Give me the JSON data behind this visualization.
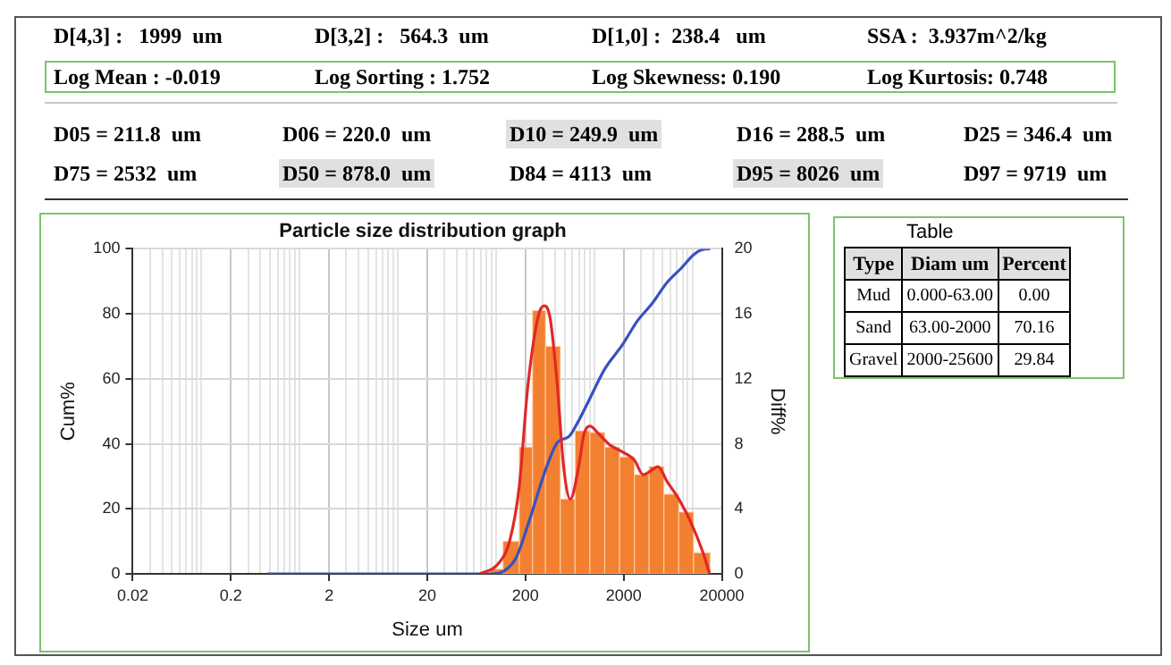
{
  "chart_data": [
    {
      "type": "other",
      "annotations": [
        "D[4,3] :   1999  um",
        "D[3,2] :   564.3  um",
        "D[1,0] :  238.4   um",
        "SSA :  3.937m^2/kg",
        "Log Mean : -0.019",
        "Log Sorting : 1.752",
        "Log Skewness: 0.190",
        "Log Kurtosis: 0.748",
        "D05 = 211.8  um",
        "D06 = 220.0  um",
        "D10 = 249.9  um",
        "D16 = 288.5  um",
        "D25 = 346.4  um",
        "D75 = 2532  um",
        "D50 = 878.0  um",
        "D84 = 4113  um",
        "D95 = 8026  um",
        "D97 = 9719  um"
      ]
    },
    {
      "type": "histogram",
      "title": "Particle size distribution graph",
      "xlabel": "Size um",
      "ylabel": "Cum%",
      "y2label": "Diff%",
      "log": "x",
      "grid": true,
      "marker": "none",
      "xlim": [
        0.02,
        20000
      ],
      "xticks": [
        0.02,
        {
          "value": 0.03,
          "label": null
        },
        {
          "value": 0.04,
          "label": null
        },
        {
          "value": 0.05,
          "label": null
        },
        {
          "value": 0.06,
          "label": null
        },
        {
          "value": 0.07,
          "label": null
        },
        {
          "value": 0.08,
          "label": null
        },
        {
          "value": 0.09,
          "label": null
        },
        {
          "value": 0.1,
          "label": null
        },
        0.2,
        {
          "value": 0.3,
          "label": null
        },
        {
          "value": 0.4,
          "label": null
        },
        {
          "value": 0.5,
          "label": null
        },
        {
          "value": 0.6,
          "label": null
        },
        {
          "value": 0.7,
          "label": null
        },
        {
          "value": 0.8,
          "label": null
        },
        {
          "value": 0.9,
          "label": null
        },
        {
          "value": 1,
          "label": null
        },
        2,
        {
          "value": 3,
          "label": null
        },
        {
          "value": 4,
          "label": null
        },
        {
          "value": 5,
          "label": null
        },
        {
          "value": 6,
          "label": null
        },
        {
          "value": 7,
          "label": null
        },
        {
          "value": 8,
          "label": null
        },
        {
          "value": 9,
          "label": null
        },
        {
          "value": 10,
          "label": null
        },
        20,
        {
          "value": 30,
          "label": null
        },
        {
          "value": 40,
          "label": null
        },
        {
          "value": 50,
          "label": null
        },
        {
          "value": 60,
          "label": null
        },
        {
          "value": 70,
          "label": null
        },
        {
          "value": 80,
          "label": null
        },
        {
          "value": 90,
          "label": null
        },
        {
          "value": 100,
          "label": null
        },
        200,
        {
          "value": 300,
          "label": null
        },
        {
          "value": 400,
          "label": null
        },
        {
          "value": 500,
          "label": null
        },
        {
          "value": 600,
          "label": null
        },
        {
          "value": 700,
          "label": null
        },
        {
          "value": 800,
          "label": null
        },
        {
          "value": 900,
          "label": null
        },
        {
          "value": 1000,
          "label": null
        },
        2000,
        {
          "value": 3000,
          "label": null
        },
        {
          "value": 4000,
          "label": null
        },
        {
          "value": 5000,
          "label": null
        },
        {
          "value": 6000,
          "label": null
        },
        {
          "value": 7000,
          "label": null
        },
        {
          "value": 8000,
          "label": null
        },
        {
          "value": 9000,
          "label": null
        },
        {
          "value": 10000,
          "label": null
        },
        20000
      ],
      "ylim": [
        0,
        100
      ],
      "yticks": [
        0,
        20,
        40,
        60,
        80,
        100
      ],
      "y2lim": [
        0,
        20
      ],
      "y2ticks": [
        0,
        4,
        8,
        12,
        16,
        20
      ],
      "series": [
        {
          "type": "histogram",
          "axis": "y2",
          "color": "#f28030",
          "bins": [
            87,
            118,
            173,
            236,
            320,
            453,
            640,
            906,
            1282,
            1815,
            2570,
            3631,
            5140,
            7278,
            10300,
            15200
          ],
          "values": [
            0.3,
            2,
            7.8,
            16.2,
            14,
            4.6,
            8.8,
            8.7,
            7.8,
            7.2,
            6.1,
            6.6,
            4.9,
            3.8,
            1.3
          ]
        },
        {
          "type": "line",
          "axis": "y2",
          "color": "#e02828",
          "x": [
            69,
            105,
            139,
            173,
            211,
            271,
            311,
            357,
            423,
            485,
            573,
            687,
            789,
            906,
            1117,
            1472,
            1945,
            2570,
            3162,
            3899,
            4477,
            5508,
            7278,
            9616,
            12680,
            15000
          ],
          "values": [
            0,
            0.6,
            2.1,
            5.4,
            11.5,
            15.9,
            16.5,
            15.7,
            11.5,
            6.8,
            4.6,
            6.4,
            8.6,
            9.1,
            8.6,
            7.9,
            7.5,
            7.0,
            6.1,
            6.4,
            6.6,
            5.7,
            4.6,
            3.2,
            1.4,
            0
          ]
        },
        {
          "type": "line",
          "color": "#3850c0",
          "x": [
            0.47,
            92,
            121,
            160,
            226,
            320,
            423,
            557,
            687,
            906,
            1282,
            1945,
            2754,
            3899,
            5508,
            7798,
            10300,
            12680,
            15200
          ],
          "values": [
            0,
            0,
            0.9,
            4.9,
            17.7,
            32,
            40.4,
            42.3,
            46.8,
            54,
            63,
            70.5,
            77.8,
            83.2,
            89.6,
            94.2,
            98.2,
            99.8,
            100
          ]
        }
      ]
    },
    {
      "type": "other",
      "title": "Table",
      "annotations": [
        "Type",
        "Diam um",
        "Percent",
        "Mud",
        "0.000-63.00",
        "0.00",
        "Sand",
        "63.00-2000",
        "70.16",
        "Gravel",
        "2000-25600",
        "29.84"
      ]
    }
  ]
}
